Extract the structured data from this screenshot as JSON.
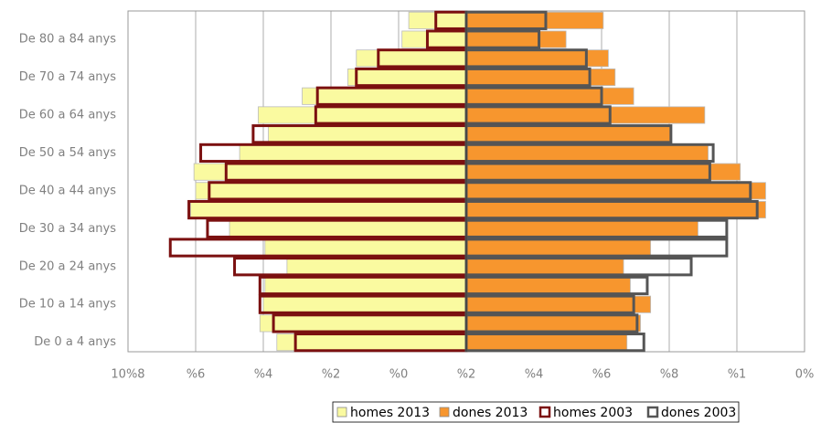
{
  "chart_data": {
    "type": "pyramid",
    "categories": [
      "De 0 a 4 anys",
      null,
      "De 10 a 14 anys",
      null,
      "De 20 a 24 anys",
      null,
      "De 30 a 34 anys",
      null,
      "De 40 a 44 anys",
      null,
      "De 50 a 54 anys",
      null,
      "De 60 a 64 anys",
      null,
      "De 70 a 74 anys",
      null,
      "De 80 a 84 anys",
      null
    ],
    "xlim": [
      -10,
      10
    ],
    "xticks": [
      {
        "value": -10,
        "label": "10%8"
      },
      {
        "value": -8,
        "label": "%6"
      },
      {
        "value": -6,
        "label": "%4"
      },
      {
        "value": -4,
        "label": "%2"
      },
      {
        "value": -2,
        "label": "%0"
      },
      {
        "value": 0,
        "label": "%2"
      },
      {
        "value": 2,
        "label": "%4"
      },
      {
        "value": 4,
        "label": "%6"
      },
      {
        "value": 6,
        "label": "%8"
      },
      {
        "value": 8,
        "label": "%1"
      },
      {
        "value": 10,
        "label": "0%"
      }
    ],
    "grid": true,
    "series": [
      {
        "name": "homes 2013",
        "color": "#fafaa0",
        "filled": true,
        "values": [
          -5.6,
          -6.1,
          -6.0,
          -5.95,
          -5.3,
          -5.95,
          -7.0,
          -8.15,
          -8.0,
          -8.05,
          -6.7,
          -5.85,
          -6.15,
          -4.85,
          -3.5,
          -3.25,
          -1.9,
          -1.7
        ]
      },
      {
        "name": "dones 2013",
        "color": "#f7962e",
        "filled": true,
        "values": [
          4.75,
          5.15,
          5.45,
          4.85,
          4.65,
          5.45,
          6.85,
          8.85,
          8.85,
          8.1,
          7.15,
          6.05,
          7.05,
          4.95,
          4.4,
          4.2,
          2.95,
          4.05
        ]
      },
      {
        "name": "homes 2003",
        "color": "#7b1010",
        "filled": false,
        "values": [
          -5.05,
          -5.7,
          -6.1,
          -6.1,
          -6.85,
          -8.75,
          -7.65,
          -8.2,
          -7.6,
          -7.1,
          -7.85,
          -6.3,
          -4.45,
          -4.4,
          -3.25,
          -2.6,
          -1.15,
          -0.9
        ]
      },
      {
        "name": "dones 2003",
        "color": "#555555",
        "filled": false,
        "values": [
          5.25,
          5.05,
          4.95,
          5.35,
          6.65,
          7.7,
          7.7,
          8.6,
          8.4,
          7.2,
          7.3,
          6.05,
          4.25,
          4.0,
          3.65,
          3.55,
          2.15,
          2.35
        ]
      }
    ],
    "legend": "bottom"
  }
}
